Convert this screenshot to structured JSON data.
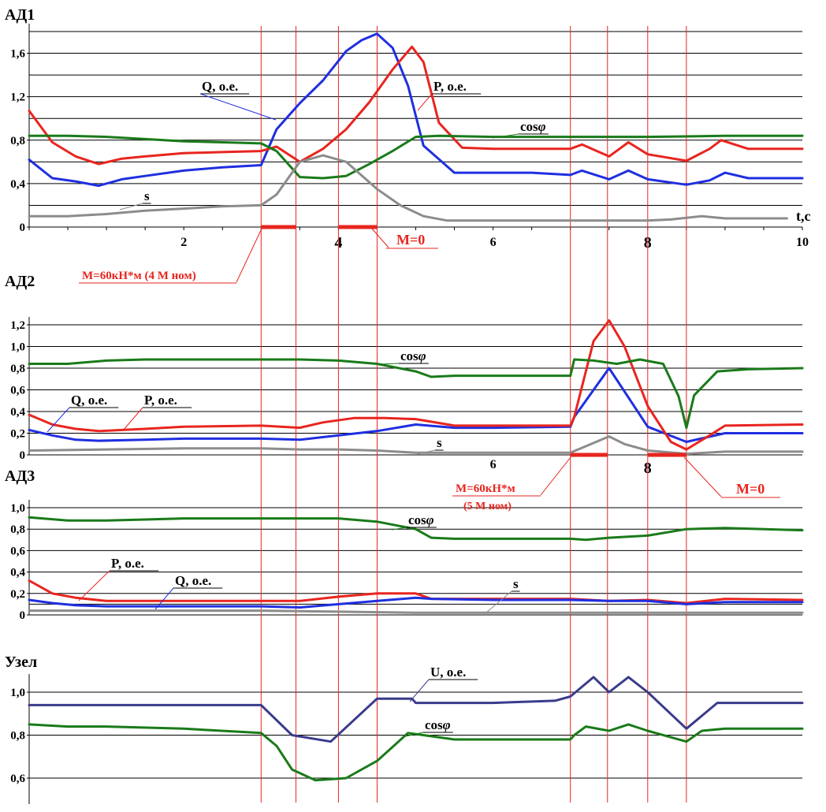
{
  "colors": {
    "P": "#e8251f",
    "Q": "#1f2fe0",
    "cos": "#1a7a1a",
    "s": "#8c8c8c",
    "U": "#3b3b8c",
    "annotation": "#e8251f"
  },
  "chart_data": [
    {
      "type": "line",
      "panel_title": "АД1",
      "x_unit_label": "t,c",
      "xlim": [
        0,
        10
      ],
      "ylim": [
        0,
        1.8
      ],
      "x_ticks": [
        "2",
        "4",
        "6",
        "8",
        "10"
      ],
      "y_ticks": [
        "0",
        "0,4",
        "0,8",
        "1,2",
        "1,6"
      ],
      "series": [
        {
          "name": "Q, о.е.",
          "color_key": "Q",
          "x": [
            0,
            0.3,
            0.6,
            0.9,
            1.2,
            1.5,
            2,
            2.5,
            3,
            3.2,
            3.5,
            3.8,
            4.1,
            4.3,
            4.5,
            4.7,
            4.9,
            5.1,
            5.5,
            6,
            6.5,
            7,
            7.15,
            7.5,
            7.75,
            8,
            8.5,
            8.8,
            9,
            9.3,
            10
          ],
          "y": [
            0.62,
            0.45,
            0.42,
            0.38,
            0.44,
            0.47,
            0.52,
            0.55,
            0.57,
            0.9,
            1.14,
            1.35,
            1.62,
            1.72,
            1.78,
            1.65,
            1.3,
            0.75,
            0.5,
            0.5,
            0.5,
            0.48,
            0.52,
            0.44,
            0.52,
            0.44,
            0.39,
            0.43,
            0.5,
            0.45,
            0.45
          ]
        },
        {
          "name": "P, о.е.",
          "color_key": "P",
          "x": [
            0,
            0.3,
            0.6,
            0.9,
            1.2,
            1.5,
            2,
            2.5,
            3,
            3.2,
            3.5,
            3.8,
            4.1,
            4.4,
            4.7,
            4.95,
            5.1,
            5.3,
            5.6,
            6,
            6.5,
            7,
            7.15,
            7.5,
            7.75,
            8,
            8.5,
            8.8,
            8.95,
            9.3,
            10
          ],
          "y": [
            1.07,
            0.78,
            0.65,
            0.58,
            0.63,
            0.65,
            0.68,
            0.69,
            0.7,
            0.74,
            0.6,
            0.72,
            0.9,
            1.15,
            1.45,
            1.66,
            1.52,
            0.96,
            0.73,
            0.72,
            0.72,
            0.72,
            0.76,
            0.65,
            0.78,
            0.67,
            0.61,
            0.72,
            0.8,
            0.72,
            0.72
          ]
        },
        {
          "name": "cos φ",
          "color_key": "cos",
          "x": [
            0,
            0.5,
            1,
            1.5,
            2,
            2.5,
            3,
            3.2,
            3.5,
            3.8,
            4.1,
            4.4,
            4.7,
            5,
            5.3,
            6,
            7,
            8,
            9,
            10
          ],
          "y": [
            0.84,
            0.84,
            0.83,
            0.81,
            0.79,
            0.78,
            0.77,
            0.7,
            0.46,
            0.45,
            0.47,
            0.58,
            0.7,
            0.83,
            0.84,
            0.83,
            0.83,
            0.83,
            0.84,
            0.84
          ]
        },
        {
          "name": "s",
          "color_key": "s",
          "x": [
            0,
            0.5,
            1,
            1.5,
            2,
            2.5,
            3,
            3.2,
            3.5,
            3.8,
            4.1,
            4.5,
            4.8,
            5.1,
            5.4,
            6,
            7,
            8,
            8.3,
            8.7,
            9,
            9.5,
            9.8
          ],
          "y": [
            0.1,
            0.1,
            0.12,
            0.15,
            0.17,
            0.19,
            0.2,
            0.3,
            0.6,
            0.66,
            0.6,
            0.35,
            0.2,
            0.1,
            0.06,
            0.06,
            0.06,
            0.06,
            0.07,
            0.1,
            0.08,
            0.08,
            0.08
          ]
        }
      ],
      "labels": {
        "Q": "Q, о.е.",
        "P": "P, о.е.",
        "cos": "cos",
        "s": "s"
      },
      "annotations": [
        {
          "text": "M=60кН*м (4 M ном)",
          "x_range": [
            3.0,
            3.45
          ]
        },
        {
          "text": "M=0",
          "x_range": [
            4.0,
            4.5
          ]
        }
      ]
    },
    {
      "type": "line",
      "panel_title": "АД2",
      "xlim": [
        0,
        10
      ],
      "ylim": [
        0,
        1.2
      ],
      "x_ticks": [
        "6",
        "8"
      ],
      "y_ticks": [
        "0",
        "0,2",
        "0,4",
        "0,6",
        "0,8",
        "1,0",
        "1,2"
      ],
      "series": [
        {
          "name": "Q, о.е.",
          "color_key": "Q",
          "x": [
            0,
            0.3,
            0.6,
            0.9,
            1.5,
            2,
            3,
            3.5,
            4,
            4.5,
            5,
            5.5,
            6,
            7,
            7.05,
            7.5,
            8,
            8.5,
            9,
            10
          ],
          "y": [
            0.23,
            0.18,
            0.14,
            0.13,
            0.14,
            0.15,
            0.15,
            0.14,
            0.18,
            0.22,
            0.28,
            0.25,
            0.25,
            0.26,
            0.35,
            0.8,
            0.26,
            0.12,
            0.2,
            0.2
          ]
        },
        {
          "name": "P, о.е.",
          "color_key": "P",
          "x": [
            0,
            0.3,
            0.6,
            0.9,
            1.5,
            2,
            3,
            3.5,
            3.8,
            4.2,
            4.6,
            5,
            5.5,
            6,
            7,
            7.05,
            7.3,
            7.5,
            7.7,
            8,
            8.3,
            8.5,
            8.8,
            9,
            10
          ],
          "y": [
            0.37,
            0.28,
            0.24,
            0.22,
            0.24,
            0.26,
            0.27,
            0.25,
            0.3,
            0.34,
            0.34,
            0.33,
            0.27,
            0.27,
            0.27,
            0.35,
            1.05,
            1.24,
            1.0,
            0.45,
            0.12,
            0.05,
            0.18,
            0.27,
            0.28
          ]
        },
        {
          "name": "cos φ",
          "color_key": "cos",
          "x": [
            0,
            0.5,
            1,
            1.5,
            2,
            3,
            3.5,
            4,
            4.5,
            5,
            5.2,
            5.5,
            6,
            6.5,
            7,
            7.05,
            7.3,
            7.6,
            7.9,
            8.2,
            8.4,
            8.5,
            8.6,
            8.9,
            9.3,
            10
          ],
          "y": [
            0.84,
            0.84,
            0.87,
            0.88,
            0.88,
            0.88,
            0.88,
            0.87,
            0.84,
            0.77,
            0.72,
            0.73,
            0.73,
            0.73,
            0.73,
            0.88,
            0.87,
            0.84,
            0.88,
            0.84,
            0.54,
            0.25,
            0.55,
            0.77,
            0.79,
            0.8
          ]
        },
        {
          "name": "s",
          "color_key": "s",
          "x": [
            0,
            1,
            2,
            3,
            3.5,
            4,
            4.5,
            5,
            5.5,
            6,
            7,
            7.5,
            7.7,
            8,
            8.5,
            9,
            10
          ],
          "y": [
            0.04,
            0.05,
            0.06,
            0.06,
            0.05,
            0.05,
            0.04,
            0.02,
            0.02,
            0.02,
            0.02,
            0.17,
            0.1,
            0.04,
            0.01,
            0.03,
            0.03
          ]
        }
      ],
      "labels": {
        "Q": "Q, о.е.",
        "P": "P, о.е.",
        "cos": "cos",
        "s": "s"
      },
      "annotations": [
        {
          "text": "M=60кН*м",
          "text2": "(5 M ном)",
          "x_range": [
            7.0,
            7.48
          ]
        },
        {
          "text": "M=0",
          "x_range": [
            8.0,
            8.5
          ]
        }
      ]
    },
    {
      "type": "line",
      "panel_title": "АД3",
      "xlim": [
        0,
        10
      ],
      "ylim": [
        0,
        1.0
      ],
      "y_ticks": [
        "0",
        "0,2",
        "0,4",
        "0,6",
        "0,8",
        "1,0"
      ],
      "series": [
        {
          "name": "P, о.е.",
          "color_key": "P",
          "x": [
            0,
            0.3,
            0.6,
            1,
            1.5,
            2,
            3,
            3.5,
            4,
            4.5,
            5,
            5.2,
            6,
            7,
            7.5,
            8,
            8.5,
            9,
            10
          ],
          "y": [
            0.32,
            0.2,
            0.16,
            0.13,
            0.13,
            0.13,
            0.13,
            0.13,
            0.17,
            0.2,
            0.2,
            0.15,
            0.15,
            0.15,
            0.13,
            0.14,
            0.11,
            0.15,
            0.14
          ]
        },
        {
          "name": "Q, о.е.",
          "color_key": "Q",
          "x": [
            0,
            0.3,
            0.6,
            1,
            1.5,
            2,
            3,
            3.5,
            4,
            4.5,
            5,
            5.2,
            6,
            7,
            7.5,
            8,
            8.5,
            9,
            10
          ],
          "y": [
            0.14,
            0.11,
            0.09,
            0.08,
            0.08,
            0.08,
            0.08,
            0.07,
            0.1,
            0.13,
            0.16,
            0.15,
            0.14,
            0.14,
            0.13,
            0.13,
            0.1,
            0.12,
            0.12
          ]
        },
        {
          "name": "cos φ",
          "color_key": "cos",
          "x": [
            0,
            0.5,
            1,
            1.5,
            2,
            3,
            3.5,
            4,
            4.5,
            5,
            5.2,
            5.5,
            6,
            7,
            7.2,
            7.5,
            8,
            8.5,
            9,
            10
          ],
          "y": [
            0.91,
            0.88,
            0.88,
            0.89,
            0.9,
            0.9,
            0.9,
            0.9,
            0.87,
            0.8,
            0.72,
            0.71,
            0.71,
            0.71,
            0.7,
            0.72,
            0.74,
            0.8,
            0.81,
            0.79
          ]
        },
        {
          "name": "s",
          "color_key": "s",
          "x": [
            0,
            1,
            2,
            3,
            4,
            5,
            6,
            7,
            8,
            9,
            10
          ],
          "y": [
            0.04,
            0.04,
            0.04,
            0.04,
            0.03,
            0.02,
            0.02,
            0.02,
            0.02,
            0.02,
            0.02
          ]
        }
      ],
      "labels": {
        "Q": "Q, о.е.",
        "P": "P, о.е.",
        "cos": "cos",
        "s": "s"
      }
    },
    {
      "type": "line",
      "panel_title": "Узел",
      "ylim": [
        0.55,
        1.1
      ],
      "y_ticks": [
        "0,6",
        "0,8",
        "1,0"
      ],
      "series": [
        {
          "name": "U, о.е.",
          "color_key": "U",
          "x": [
            0,
            0.5,
            1,
            2,
            3,
            3.4,
            3.9,
            4.5,
            4.95,
            5,
            5.5,
            6,
            6.8,
            7,
            7.3,
            7.5,
            7.75,
            8,
            8.5,
            8.9,
            9,
            9.5,
            10
          ],
          "y": [
            0.94,
            0.94,
            0.94,
            0.94,
            0.94,
            0.8,
            0.77,
            0.97,
            0.97,
            0.95,
            0.95,
            0.95,
            0.96,
            0.98,
            1.07,
            1.0,
            1.07,
            1.0,
            0.83,
            0.95,
            0.95,
            0.95,
            0.95
          ]
        },
        {
          "name": "cos φ",
          "color_key": "cos",
          "x": [
            0,
            0.5,
            1,
            2,
            3,
            3.2,
            3.4,
            3.7,
            4.1,
            4.5,
            4.9,
            5.1,
            5.5,
            6,
            6.5,
            7,
            7.05,
            7.2,
            7.5,
            7.75,
            8,
            8.3,
            8.5,
            8.7,
            9,
            10
          ],
          "y": [
            0.85,
            0.84,
            0.84,
            0.83,
            0.81,
            0.75,
            0.64,
            0.59,
            0.6,
            0.68,
            0.81,
            0.8,
            0.78,
            0.78,
            0.78,
            0.78,
            0.8,
            0.84,
            0.82,
            0.85,
            0.82,
            0.79,
            0.77,
            0.82,
            0.83,
            0.83
          ]
        }
      ],
      "labels": {
        "U": "U, о.е.",
        "cos": "cos"
      }
    }
  ],
  "event_times": [
    3.0,
    3.45,
    4.0,
    4.5,
    7.0,
    7.48,
    8.0,
    8.5
  ],
  "symbol_phi": "φ"
}
